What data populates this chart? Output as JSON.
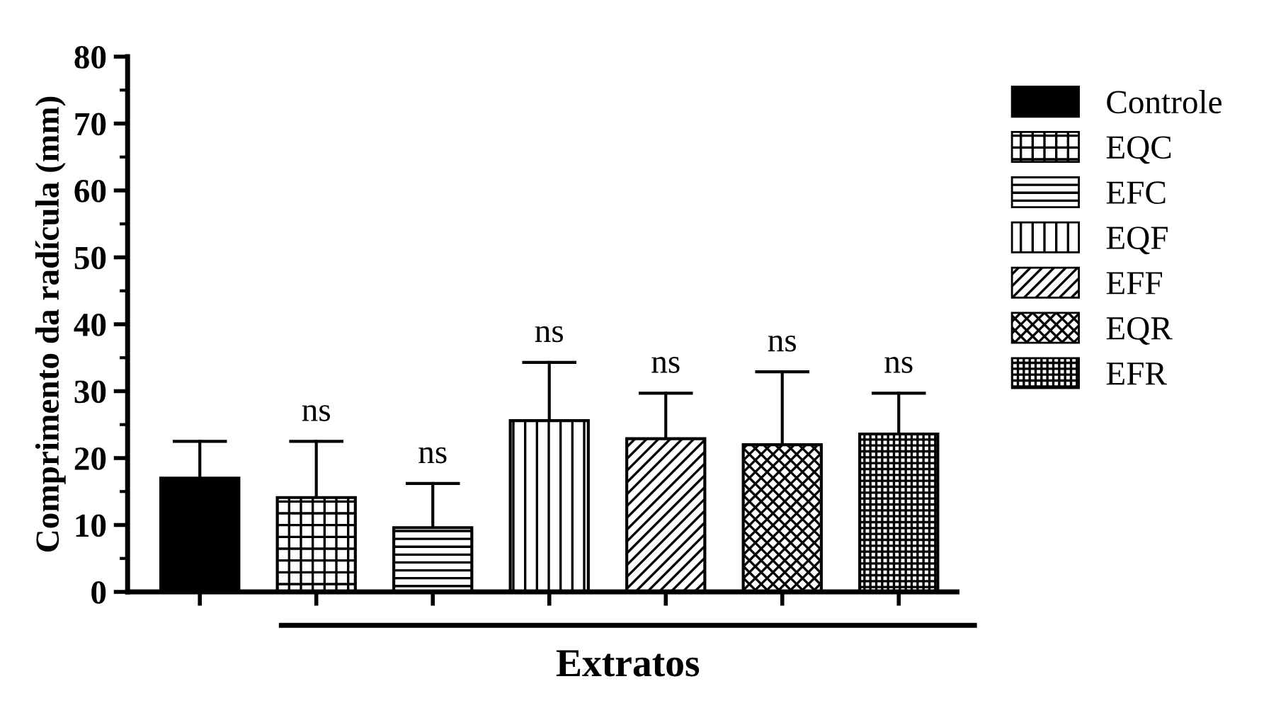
{
  "chart_data": {
    "type": "bar",
    "ylabel": "Comprimento da radícula (mm)",
    "xlabel": "Extratos",
    "categories": [
      null,
      null,
      null,
      null,
      null,
      null,
      null
    ],
    "series": [
      {
        "name": "Controle",
        "color": "#000000",
        "values": [
          17,
          null,
          null,
          null,
          null,
          null,
          null
        ],
        "errors": [
          5.5,
          null,
          null,
          null,
          null,
          null,
          null
        ]
      },
      {
        "name": "EQC",
        "color": "#000000",
        "values": [
          null,
          14.1,
          null,
          null,
          null,
          null,
          null
        ],
        "errors": [
          null,
          8.4,
          null,
          null,
          null,
          null,
          null
        ]
      },
      {
        "name": "EFC",
        "color": "#000000",
        "values": [
          null,
          null,
          9.6,
          null,
          null,
          null,
          null
        ],
        "errors": [
          null,
          null,
          6.6,
          null,
          null,
          null,
          null
        ]
      },
      {
        "name": "EQF",
        "color": "#000000",
        "values": [
          null,
          null,
          null,
          25.6,
          null,
          null,
          null
        ],
        "errors": [
          null,
          null,
          null,
          8.7,
          null,
          null,
          null
        ]
      },
      {
        "name": "EFF",
        "color": "#000000",
        "values": [
          null,
          null,
          null,
          null,
          22.9,
          null,
          null
        ],
        "errors": [
          null,
          null,
          null,
          null,
          6.8,
          null,
          null
        ]
      },
      {
        "name": "EQR",
        "color": "#000000",
        "values": [
          null,
          null,
          null,
          null,
          null,
          22.0,
          null
        ],
        "errors": [
          null,
          null,
          null,
          null,
          null,
          10.9,
          null
        ]
      },
      {
        "name": "EFR",
        "color": "#000000",
        "values": [
          null,
          null,
          null,
          null,
          null,
          null,
          23.6
        ],
        "errors": [
          null,
          null,
          null,
          null,
          null,
          null,
          6.1
        ]
      }
    ],
    "annotations": [
      "ns",
      "ns",
      "ns",
      "ns",
      "ns",
      "ns"
    ],
    "ylim": [
      0,
      80
    ],
    "yticks": [
      0,
      10,
      20,
      30,
      40,
      50,
      60,
      70,
      80
    ],
    "legend": "top right",
    "grid": false
  }
}
